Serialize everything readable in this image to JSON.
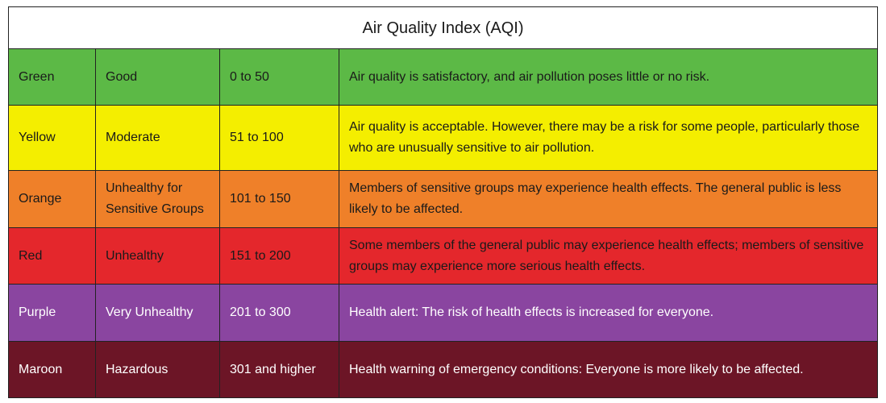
{
  "table": {
    "title": "Air Quality Index (AQI)",
    "rows": [
      [
        "Green",
        "Good",
        "0 to 50",
        "Air quality is satisfactory, and air pollution poses little or no risk."
      ],
      [
        "Yellow",
        "Moderate",
        "51 to 100",
        "Air quality is acceptable. However, there may be a risk for some people, particularly those who are unusually sensitive to air pollution."
      ],
      [
        "Orange",
        "Unhealthy for Sensitive Groups",
        "101 to 150",
        "Members of sensitive groups may experience health effects. The general public is less likely to be affected."
      ],
      [
        "Red",
        "Unhealthy",
        "151 to 200",
        "Some members of the general public may experience health effects; members of sensitive groups may experience more serious health effects."
      ],
      [
        "Purple",
        "Very Unhealthy",
        "201 to 300",
        "Health alert: The risk of health effects is increased for everyone."
      ],
      [
        "Maroon",
        "Hazardous",
        "301 and higher",
        "Health warning of emergency conditions: Everyone is more likely to be affected."
      ]
    ]
  }
}
